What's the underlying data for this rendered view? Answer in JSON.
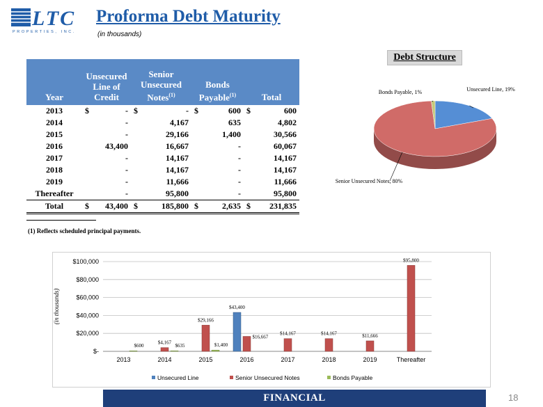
{
  "header": {
    "logo_text": "LTC",
    "logo_sub": "PROPERTIES, INC.",
    "title": "Proforma Debt Maturity",
    "subtitle": "(in thousands)"
  },
  "table": {
    "columns": [
      {
        "label": "Year"
      },
      {
        "label": "Unsecured Line of Credit"
      },
      {
        "label": "Senior Unsecured Notes",
        "note": "(1)"
      },
      {
        "label": "Bonds Payable",
        "note": "(1)"
      },
      {
        "label": "Total"
      }
    ],
    "rows": [
      {
        "cells": [
          "2013",
          "-",
          "-",
          "600",
          "600"
        ],
        "currency": "$"
      },
      {
        "cells": [
          "2014",
          "-",
          "4,167",
          "635",
          "4,802"
        ]
      },
      {
        "cells": [
          "2015",
          "-",
          "29,166",
          "1,400",
          "30,566"
        ]
      },
      {
        "cells": [
          "2016",
          "43,400",
          "16,667",
          "-",
          "60,067"
        ]
      },
      {
        "cells": [
          "2017",
          "-",
          "14,167",
          "-",
          "14,167"
        ]
      },
      {
        "cells": [
          "2018",
          "-",
          "14,167",
          "-",
          "14,167"
        ]
      },
      {
        "cells": [
          "2019",
          "-",
          "11,666",
          "-",
          "11,666"
        ]
      },
      {
        "cells": [
          "Thereafter",
          "-",
          "95,800",
          "-",
          "95,800"
        ]
      },
      {
        "cells": [
          "Total",
          "43,400",
          "185,800",
          "2,635",
          "231,835"
        ],
        "currency": "$"
      }
    ]
  },
  "footnote": "(1)  Reflects scheduled principal payments.",
  "chart_data": [
    {
      "type": "pie",
      "title": "Debt Structure",
      "categories": [
        "Unsecured Line",
        "Senior Unsecured Notes",
        "Bonds Payable"
      ],
      "values": [
        19,
        80,
        1
      ],
      "value_labels": [
        "Unsecured Line, 19%",
        "Senior Unsecured Notes, 80%",
        "Bonds Payable, 1%"
      ],
      "colors": [
        "#558ed5",
        "#d06b68",
        "#c4c97a"
      ]
    },
    {
      "type": "bar",
      "y_label": "(in thousands)",
      "categories": [
        "2013",
        "2014",
        "2015",
        "2016",
        "2017",
        "2018",
        "2019",
        "Thereafter"
      ],
      "series": [
        {
          "name": "Unsecured Line",
          "color": "#4f81bd",
          "values": [
            0,
            0,
            0,
            43400,
            0,
            0,
            0,
            0
          ],
          "value_labels": [
            null,
            null,
            null,
            "$43,400",
            null,
            null,
            null,
            null
          ]
        },
        {
          "name": "Senior Unsecured Notes",
          "color": "#c0504d",
          "values": [
            0,
            4167,
            29166,
            16667,
            14167,
            14167,
            11666,
            95800
          ],
          "value_labels": [
            null,
            "$4,167",
            "$29,166",
            "$16,667",
            "$14,167",
            "$14,167",
            "$11,666",
            "$95,800"
          ]
        },
        {
          "name": "Bonds Payable",
          "color": "#9bbb59",
          "values": [
            600,
            635,
            1400,
            0,
            0,
            0,
            0,
            0
          ],
          "value_labels": [
            "$600",
            "$635",
            "$1,400",
            null,
            null,
            null,
            null,
            null
          ]
        }
      ],
      "ylim": [
        0,
        100000
      ],
      "yticks": [
        {
          "value": 0,
          "label": "$-"
        },
        {
          "value": 20000,
          "label": "$20,000"
        },
        {
          "value": 40000,
          "label": "$40,000"
        },
        {
          "value": 60000,
          "label": "$60,000"
        },
        {
          "value": 80000,
          "label": "$80,000"
        },
        {
          "value": 100000,
          "label": "$100,000"
        }
      ],
      "grid": true,
      "legend": "bottom"
    }
  ],
  "footer": {
    "section": "FINANCIAL",
    "page": "18"
  }
}
